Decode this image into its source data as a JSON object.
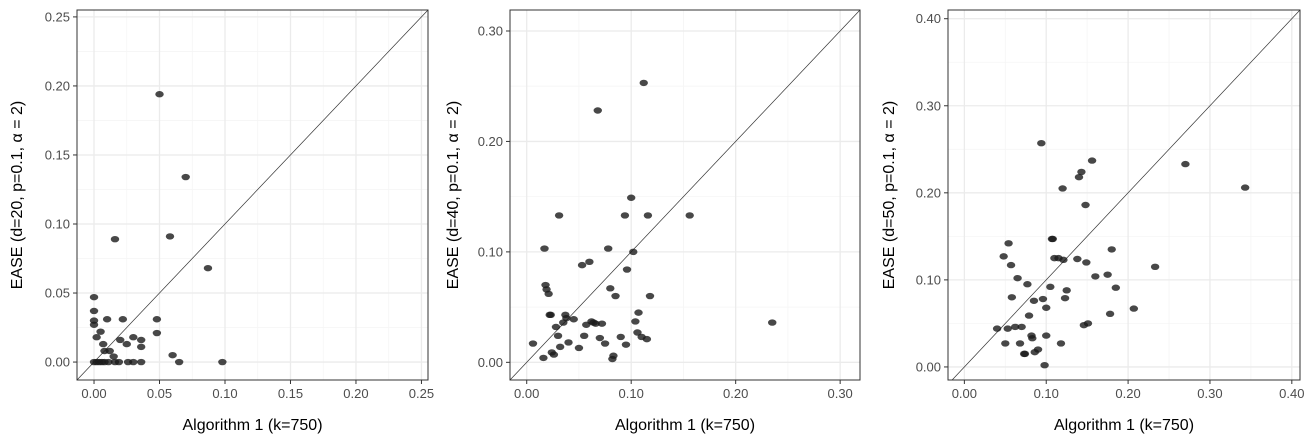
{
  "figure": {
    "colors": {
      "point": "#1a1a1a",
      "diagonal": "#333333",
      "grid_major": "#ebebeb",
      "grid_minor": "#f5f5f5",
      "frame": "#333333",
      "tick_text": "#4d4d4d"
    }
  },
  "chart_data": [
    {
      "type": "scatter",
      "title": "",
      "xlabel": "Algorithm 1 (k=750)",
      "ylabel": "EASE (d=20, p=0.1, α = 2)",
      "xlim": [
        -0.013,
        0.255
      ],
      "ylim": [
        -0.013,
        0.255
      ],
      "xticks": [
        0.0,
        0.05,
        0.1,
        0.15,
        0.2,
        0.25
      ],
      "yticks": [
        0.0,
        0.05,
        0.1,
        0.15,
        0.2,
        0.25
      ],
      "tick_labels": [
        "0.00",
        "0.05",
        "0.10",
        "0.15",
        "0.20",
        "0.25"
      ],
      "diagonal": true,
      "grid": true,
      "points": [
        [
          0.0,
          0.0
        ],
        [
          0.002,
          0.0
        ],
        [
          0.004,
          0.0
        ],
        [
          0.006,
          0.0
        ],
        [
          0.008,
          0.0
        ],
        [
          0.011,
          0.0
        ],
        [
          0.016,
          0.0
        ],
        [
          0.019,
          0.0
        ],
        [
          0.026,
          0.0
        ],
        [
          0.03,
          0.0
        ],
        [
          0.036,
          0.0
        ],
        [
          0.098,
          0.0
        ],
        [
          0.065,
          0.0
        ],
        [
          0.0,
          0.047
        ],
        [
          0.0,
          0.037
        ],
        [
          0.0,
          0.03
        ],
        [
          0.0,
          0.027
        ],
        [
          0.002,
          0.018
        ],
        [
          0.005,
          0.022
        ],
        [
          0.007,
          0.013
        ],
        [
          0.008,
          0.008
        ],
        [
          0.01,
          0.031
        ],
        [
          0.012,
          0.008
        ],
        [
          0.015,
          0.004
        ],
        [
          0.02,
          0.016
        ],
        [
          0.022,
          0.031
        ],
        [
          0.025,
          0.013
        ],
        [
          0.03,
          0.018
        ],
        [
          0.036,
          0.016
        ],
        [
          0.036,
          0.011
        ],
        [
          0.048,
          0.031
        ],
        [
          0.048,
          0.021
        ],
        [
          0.06,
          0.005
        ],
        [
          0.016,
          0.089
        ],
        [
          0.058,
          0.091
        ],
        [
          0.087,
          0.068
        ],
        [
          0.07,
          0.134
        ],
        [
          0.05,
          0.194
        ]
      ]
    },
    {
      "type": "scatter",
      "title": "",
      "xlabel": "Algorithm 1 (k=750)",
      "ylabel": "EASE (d=40, p=0.1, α = 2)",
      "xlim": [
        -0.016,
        0.319
      ],
      "ylim": [
        -0.016,
        0.319
      ],
      "xticks": [
        0.0,
        0.1,
        0.2,
        0.3
      ],
      "yticks": [
        0.0,
        0.1,
        0.2,
        0.3
      ],
      "tick_labels": [
        "0.00",
        "0.10",
        "0.20",
        "0.30"
      ],
      "diagonal": true,
      "grid": true,
      "points": [
        [
          0.006,
          0.017
        ],
        [
          0.016,
          0.004
        ],
        [
          0.017,
          0.103
        ],
        [
          0.018,
          0.07
        ],
        [
          0.019,
          0.066
        ],
        [
          0.021,
          0.062
        ],
        [
          0.022,
          0.043
        ],
        [
          0.023,
          0.043
        ],
        [
          0.024,
          0.009
        ],
        [
          0.026,
          0.007
        ],
        [
          0.028,
          0.032
        ],
        [
          0.03,
          0.024
        ],
        [
          0.031,
          0.133
        ],
        [
          0.032,
          0.014
        ],
        [
          0.035,
          0.036
        ],
        [
          0.037,
          0.043
        ],
        [
          0.038,
          0.04
        ],
        [
          0.04,
          0.018
        ],
        [
          0.045,
          0.039
        ],
        [
          0.05,
          0.013
        ],
        [
          0.053,
          0.088
        ],
        [
          0.055,
          0.024
        ],
        [
          0.057,
          0.034
        ],
        [
          0.06,
          0.091
        ],
        [
          0.062,
          0.037
        ],
        [
          0.064,
          0.036
        ],
        [
          0.066,
          0.035
        ],
        [
          0.068,
          0.228
        ],
        [
          0.07,
          0.022
        ],
        [
          0.072,
          0.035
        ],
        [
          0.075,
          0.017
        ],
        [
          0.078,
          0.103
        ],
        [
          0.08,
          0.067
        ],
        [
          0.082,
          0.003
        ],
        [
          0.083,
          0.006
        ],
        [
          0.085,
          0.06
        ],
        [
          0.09,
          0.023
        ],
        [
          0.094,
          0.133
        ],
        [
          0.095,
          0.016
        ],
        [
          0.096,
          0.084
        ],
        [
          0.1,
          0.149
        ],
        [
          0.102,
          0.1
        ],
        [
          0.104,
          0.037
        ],
        [
          0.106,
          0.027
        ],
        [
          0.107,
          0.045
        ],
        [
          0.11,
          0.023
        ],
        [
          0.112,
          0.253
        ],
        [
          0.115,
          0.021
        ],
        [
          0.116,
          0.133
        ],
        [
          0.118,
          0.06
        ],
        [
          0.156,
          0.133
        ],
        [
          0.235,
          0.036
        ]
      ]
    },
    {
      "type": "scatter",
      "title": "",
      "xlabel": "Algorithm 1 (k=750)",
      "ylabel": "EASE (d=50, p=0.1, α = 2)",
      "xlim": [
        -0.02,
        0.41
      ],
      "ylim": [
        -0.015,
        0.41
      ],
      "xticks": [
        0.0,
        0.1,
        0.2,
        0.3,
        0.4
      ],
      "yticks": [
        0.0,
        0.1,
        0.2,
        0.3,
        0.4
      ],
      "tick_labels": [
        "0.00",
        "0.10",
        "0.20",
        "0.30",
        "0.40"
      ],
      "diagonal": true,
      "grid": true,
      "points": [
        [
          0.04,
          0.044
        ],
        [
          0.048,
          0.127
        ],
        [
          0.05,
          0.027
        ],
        [
          0.053,
          0.044
        ],
        [
          0.054,
          0.142
        ],
        [
          0.057,
          0.117
        ],
        [
          0.058,
          0.08
        ],
        [
          0.062,
          0.046
        ],
        [
          0.065,
          0.102
        ],
        [
          0.068,
          0.027
        ],
        [
          0.07,
          0.046
        ],
        [
          0.073,
          0.015
        ],
        [
          0.074,
          0.015
        ],
        [
          0.077,
          0.095
        ],
        [
          0.079,
          0.059
        ],
        [
          0.082,
          0.036
        ],
        [
          0.083,
          0.033
        ],
        [
          0.085,
          0.076
        ],
        [
          0.086,
          0.017
        ],
        [
          0.09,
          0.02
        ],
        [
          0.094,
          0.257
        ],
        [
          0.096,
          0.078
        ],
        [
          0.098,
          0.002
        ],
        [
          0.1,
          0.068
        ],
        [
          0.1,
          0.036
        ],
        [
          0.105,
          0.092
        ],
        [
          0.107,
          0.147
        ],
        [
          0.108,
          0.147
        ],
        [
          0.11,
          0.125
        ],
        [
          0.115,
          0.125
        ],
        [
          0.118,
          0.027
        ],
        [
          0.12,
          0.205
        ],
        [
          0.121,
          0.123
        ],
        [
          0.123,
          0.079
        ],
        [
          0.125,
          0.088
        ],
        [
          0.138,
          0.124
        ],
        [
          0.14,
          0.218
        ],
        [
          0.143,
          0.224
        ],
        [
          0.146,
          0.048
        ],
        [
          0.148,
          0.186
        ],
        [
          0.149,
          0.12
        ],
        [
          0.151,
          0.05
        ],
        [
          0.156,
          0.237
        ],
        [
          0.16,
          0.104
        ],
        [
          0.175,
          0.106
        ],
        [
          0.178,
          0.061
        ],
        [
          0.18,
          0.135
        ],
        [
          0.185,
          0.091
        ],
        [
          0.207,
          0.067
        ],
        [
          0.233,
          0.115
        ],
        [
          0.27,
          0.233
        ],
        [
          0.343,
          0.206
        ]
      ]
    }
  ]
}
